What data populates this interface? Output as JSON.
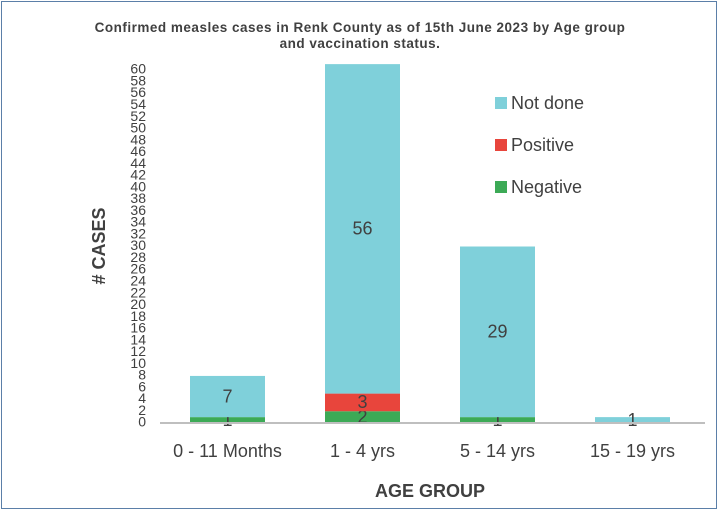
{
  "chart_data": {
    "type": "stacked_bar",
    "title": "Confirmed measles cases in Renk County as of 15th June 2023 by Age group and vaccination status.",
    "categories": [
      "0 - 11 Months",
      "1 - 4 yrs",
      "5 - 14 yrs",
      "15 - 19 yrs"
    ],
    "series": [
      {
        "name": "Negative",
        "color": "#3caa56",
        "values": [
          1,
          2,
          1,
          null
        ]
      },
      {
        "name": "Positive",
        "color": "#e8453c",
        "values": [
          null,
          3,
          null,
          null
        ]
      },
      {
        "name": "Not done",
        "color": "#7fd0da",
        "values": [
          7,
          56,
          29,
          1
        ]
      }
    ],
    "x_label": "AGE GROUP",
    "y_label": "# CASES",
    "ylim": [
      0,
      60
    ],
    "yticks": [
      0,
      2,
      4,
      6,
      8,
      10,
      12,
      14,
      16,
      18,
      20,
      22,
      24,
      26,
      28,
      30,
      32,
      34,
      36,
      38,
      40,
      42,
      44,
      46,
      48,
      50,
      52,
      54,
      56,
      58,
      60
    ],
    "legend": "upper right"
  }
}
